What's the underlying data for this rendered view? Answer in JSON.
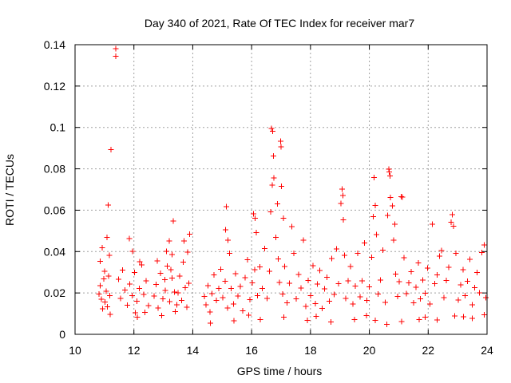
{
  "chart_data": {
    "type": "scatter",
    "title": "Day 340 of 2021, Rate Of TEC Index for receiver mar7",
    "xlabel": "GPS time / hours",
    "ylabel": "ROTI / TECUs",
    "xlim": [
      10,
      24
    ],
    "ylim": [
      0,
      0.14
    ],
    "xticks": [
      "10",
      "12",
      "14",
      "16",
      "18",
      "20",
      "22",
      "24"
    ],
    "yticks": [
      "0",
      "0.02",
      "0.04",
      "0.06",
      "0.08",
      "0.1",
      "0.12",
      "0.14"
    ],
    "xtick_values": [
      10,
      12,
      14,
      16,
      18,
      20,
      22,
      24
    ],
    "ytick_values": [
      0,
      0.02,
      0.04,
      0.06,
      0.08,
      0.1,
      0.12,
      0.14
    ],
    "grid": true,
    "marker": "plus",
    "marker_color": "#ff0000",
    "series": [
      {
        "name": "ROTI",
        "points": [
          [
            10.82,
            0.0195
          ],
          [
            10.86,
            0.0236
          ],
          [
            10.9,
            0.0169
          ],
          [
            10.94,
            0.0124
          ],
          [
            10.98,
            0.0269
          ],
          [
            11.02,
            0.0157
          ],
          [
            11.06,
            0.0208
          ],
          [
            11.1,
            0.0133
          ],
          [
            11.14,
            0.0281
          ],
          [
            11.18,
            0.0187
          ],
          [
            10.85,
            0.0352
          ],
          [
            10.92,
            0.0418
          ],
          [
            11.0,
            0.0305
          ],
          [
            11.08,
            0.0469
          ],
          [
            11.16,
            0.0381
          ],
          [
            11.12,
            0.0625
          ],
          [
            11.22,
            0.0892
          ],
          [
            11.38,
            0.138
          ],
          [
            11.39,
            0.1345
          ],
          [
            11.2,
            0.0097
          ],
          [
            11.48,
            0.0266
          ],
          [
            11.55,
            0.0173
          ],
          [
            11.62,
            0.0311
          ],
          [
            11.7,
            0.0214
          ],
          [
            11.78,
            0.0141
          ],
          [
            11.86,
            0.0243
          ],
          [
            11.94,
            0.0187
          ],
          [
            12.02,
            0.0298
          ],
          [
            12.1,
            0.0161
          ],
          [
            12.18,
            0.0222
          ],
          [
            12.26,
            0.0335
          ],
          [
            12.34,
            0.0192
          ],
          [
            12.42,
            0.0258
          ],
          [
            12.5,
            0.0139
          ],
          [
            11.95,
            0.0402
          ],
          [
            12.05,
            0.0105
          ],
          [
            12.2,
            0.0351
          ],
          [
            12.38,
            0.0107
          ],
          [
            11.85,
            0.0462
          ],
          [
            12.12,
            0.0082
          ],
          [
            12.68,
            0.0186
          ],
          [
            12.75,
            0.0241
          ],
          [
            12.82,
            0.0127
          ],
          [
            12.9,
            0.0295
          ],
          [
            12.98,
            0.0172
          ],
          [
            13.06,
            0.0213
          ],
          [
            13.14,
            0.0329
          ],
          [
            13.22,
            0.0158
          ],
          [
            13.3,
            0.0272
          ],
          [
            13.38,
            0.0204
          ],
          [
            13.46,
            0.0143
          ],
          [
            13.2,
            0.0451
          ],
          [
            13.3,
            0.0385
          ],
          [
            13.34,
            0.0548
          ],
          [
            13.1,
            0.0402
          ],
          [
            12.95,
            0.0091
          ],
          [
            13.4,
            0.0109
          ],
          [
            12.8,
            0.0355
          ],
          [
            13.25,
            0.0312
          ],
          [
            13.05,
            0.0264
          ],
          [
            13.5,
            0.0201
          ],
          [
            13.56,
            0.0281
          ],
          [
            13.62,
            0.0163
          ],
          [
            13.68,
            0.0349
          ],
          [
            13.74,
            0.0225
          ],
          [
            13.8,
            0.0132
          ],
          [
            13.86,
            0.0247
          ],
          [
            13.7,
            0.0452
          ],
          [
            13.82,
            0.0397
          ],
          [
            13.9,
            0.0484
          ],
          [
            14.4,
            0.0183
          ],
          [
            14.45,
            0.0142
          ],
          [
            14.52,
            0.0235
          ],
          [
            14.58,
            0.0108
          ],
          [
            14.65,
            0.0196
          ],
          [
            14.72,
            0.0287
          ],
          [
            14.8,
            0.0163
          ],
          [
            14.88,
            0.0221
          ],
          [
            14.95,
            0.0314
          ],
          [
            15.02,
            0.0178
          ],
          [
            15.1,
            0.0257
          ],
          [
            15.18,
            0.0127
          ],
          [
            15.25,
            0.0392
          ],
          [
            15.12,
            0.0505
          ],
          [
            15.14,
            0.0618
          ],
          [
            15.2,
            0.0455
          ],
          [
            15.3,
            0.0221
          ],
          [
            15.38,
            0.0146
          ],
          [
            15.46,
            0.0293
          ],
          [
            15.54,
            0.0185
          ],
          [
            15.62,
            0.0232
          ],
          [
            15.7,
            0.0114
          ],
          [
            15.78,
            0.0273
          ],
          [
            15.86,
            0.0361
          ],
          [
            15.94,
            0.0168
          ],
          [
            16.02,
            0.0249
          ],
          [
            16.1,
            0.0313
          ],
          [
            16.06,
            0.0582
          ],
          [
            16.16,
            0.0492
          ],
          [
            16.12,
            0.0561
          ],
          [
            16.2,
            0.0188
          ],
          [
            16.28,
            0.0326
          ],
          [
            16.36,
            0.0222
          ],
          [
            16.44,
            0.0415
          ],
          [
            16.52,
            0.0173
          ],
          [
            16.6,
            0.0304
          ],
          [
            16.65,
            0.0592
          ],
          [
            16.68,
            0.0996
          ],
          [
            16.72,
            0.0982
          ],
          [
            16.74,
            0.0862
          ],
          [
            16.7,
            0.0722
          ],
          [
            16.75,
            0.0755
          ],
          [
            16.82,
            0.0468
          ],
          [
            16.9,
            0.0365
          ],
          [
            16.98,
            0.0934
          ],
          [
            17.0,
            0.0906
          ],
          [
            17.02,
            0.0715
          ],
          [
            17.08,
            0.0561
          ],
          [
            16.88,
            0.0631
          ],
          [
            16.95,
            0.0251
          ],
          [
            17.05,
            0.0194
          ],
          [
            17.12,
            0.0328
          ],
          [
            17.2,
            0.0153
          ],
          [
            17.28,
            0.0247
          ],
          [
            17.36,
            0.0521
          ],
          [
            17.44,
            0.0392
          ],
          [
            17.52,
            0.0171
          ],
          [
            17.6,
            0.0289
          ],
          [
            17.68,
            0.0224
          ],
          [
            17.76,
            0.0456
          ],
          [
            17.84,
            0.0135
          ],
          [
            17.92,
            0.0261
          ],
          [
            18.0,
            0.0187
          ],
          [
            18.08,
            0.0332
          ],
          [
            18.16,
            0.0149
          ],
          [
            18.24,
            0.0243
          ],
          [
            18.32,
            0.0308
          ],
          [
            18.4,
            0.0125
          ],
          [
            18.48,
            0.0219
          ],
          [
            18.56,
            0.0276
          ],
          [
            18.64,
            0.0161
          ],
          [
            18.72,
            0.0367
          ],
          [
            18.8,
            0.0192
          ],
          [
            18.88,
            0.0412
          ],
          [
            18.96,
            0.0245
          ],
          [
            19.04,
            0.0632
          ],
          [
            19.08,
            0.0701
          ],
          [
            19.1,
            0.0671
          ],
          [
            19.12,
            0.0553
          ],
          [
            19.16,
            0.0382
          ],
          [
            19.2,
            0.0173
          ],
          [
            19.28,
            0.0259
          ],
          [
            19.36,
            0.0328
          ],
          [
            19.44,
            0.0146
          ],
          [
            19.52,
            0.0234
          ],
          [
            19.6,
            0.0392
          ],
          [
            19.68,
            0.0181
          ],
          [
            19.76,
            0.0258
          ],
          [
            19.84,
            0.0442
          ],
          [
            19.92,
            0.0164
          ],
          [
            20.0,
            0.0229
          ],
          [
            20.08,
            0.0372
          ],
          [
            20.14,
            0.0568
          ],
          [
            20.16,
            0.0758
          ],
          [
            20.2,
            0.0623
          ],
          [
            20.24,
            0.0482
          ],
          [
            20.3,
            0.0195
          ],
          [
            20.38,
            0.0263
          ],
          [
            20.46,
            0.0407
          ],
          [
            20.54,
            0.0155
          ],
          [
            20.62,
            0.0575
          ],
          [
            20.66,
            0.0798
          ],
          [
            20.68,
            0.0785
          ],
          [
            20.7,
            0.0765
          ],
          [
            20.72,
            0.0662
          ],
          [
            20.78,
            0.0621
          ],
          [
            20.82,
            0.0455
          ],
          [
            20.86,
            0.0532
          ],
          [
            20.9,
            0.0292
          ],
          [
            20.96,
            0.0183
          ],
          [
            21.02,
            0.0254
          ],
          [
            21.08,
            0.0665
          ],
          [
            21.12,
            0.0663
          ],
          [
            21.18,
            0.0371
          ],
          [
            21.26,
            0.0196
          ],
          [
            21.34,
            0.0248
          ],
          [
            21.42,
            0.0302
          ],
          [
            21.5,
            0.0153
          ],
          [
            21.58,
            0.0227
          ],
          [
            21.66,
            0.0345
          ],
          [
            21.74,
            0.0172
          ],
          [
            21.82,
            0.0263
          ],
          [
            21.9,
            0.0198
          ],
          [
            21.98,
            0.0321
          ],
          [
            22.06,
            0.0146
          ],
          [
            22.14,
            0.0532
          ],
          [
            22.22,
            0.0244
          ],
          [
            22.3,
            0.0287
          ],
          [
            22.38,
            0.0378
          ],
          [
            22.46,
            0.0405
          ],
          [
            22.54,
            0.0177
          ],
          [
            22.62,
            0.0261
          ],
          [
            22.7,
            0.0324
          ],
          [
            22.78,
            0.0542
          ],
          [
            22.82,
            0.0578
          ],
          [
            22.86,
            0.0523
          ],
          [
            22.94,
            0.0391
          ],
          [
            23.02,
            0.0165
          ],
          [
            23.1,
            0.0239
          ],
          [
            23.18,
            0.0312
          ],
          [
            23.26,
            0.0188
          ],
          [
            23.34,
            0.0256
          ],
          [
            23.42,
            0.0363
          ],
          [
            23.5,
            0.0142
          ],
          [
            23.58,
            0.0226
          ],
          [
            23.66,
            0.0298
          ],
          [
            23.74,
            0.0201
          ],
          [
            23.82,
            0.0395
          ],
          [
            23.9,
            0.0432
          ],
          [
            23.96,
            0.0178
          ],
          [
            14.6,
            0.0054
          ],
          [
            15.4,
            0.0065
          ],
          [
            16.3,
            0.0071
          ],
          [
            17.1,
            0.0083
          ],
          [
            17.9,
            0.0067
          ],
          [
            18.7,
            0.0059
          ],
          [
            19.5,
            0.0072
          ],
          [
            20.2,
            0.0068
          ],
          [
            20.6,
            0.0049
          ],
          [
            21.1,
            0.0061
          ],
          [
            21.7,
            0.0071
          ],
          [
            22.3,
            0.0069
          ],
          [
            22.9,
            0.0088
          ],
          [
            23.5,
            0.0077
          ],
          [
            23.9,
            0.0094
          ],
          [
            15.9,
            0.0093
          ],
          [
            18.2,
            0.0086
          ],
          [
            19.9,
            0.0091
          ],
          [
            21.9,
            0.0083
          ],
          [
            23.2,
            0.0085
          ]
        ]
      }
    ]
  }
}
